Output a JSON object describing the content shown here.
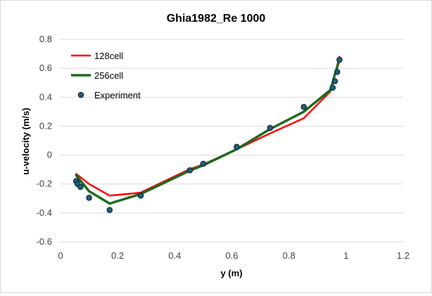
{
  "chart_data": {
    "type": "line",
    "title": "Ghia1982_Re 1000",
    "xlabel": "y (m)",
    "ylabel": "u-velocity (m/s)",
    "xlim": [
      0,
      1.2
    ],
    "ylim": [
      -0.6,
      0.8
    ],
    "x_ticks": [
      "0",
      "0.2",
      "0.4",
      "0.6",
      "0.8",
      "1",
      "1.2"
    ],
    "y_ticks": [
      "-0.6",
      "-0.4",
      "-0.2",
      "0",
      "0.2",
      "0.4",
      "0.6",
      "0.8"
    ],
    "grid": "horizontal",
    "legend": "top-left",
    "series": [
      {
        "name": "128cell",
        "kind": "line",
        "color": "#ff0000",
        "x": [
          0.055,
          0.1,
          0.172,
          0.28,
          0.45,
          0.5,
          0.617,
          0.734,
          0.852,
          0.945,
          0.953,
          0.961,
          0.969,
          0.977
        ],
        "y": [
          -0.13,
          -0.2,
          -0.28,
          -0.26,
          -0.1,
          -0.065,
          0.04,
          0.15,
          0.255,
          0.44,
          0.5,
          0.56,
          0.62,
          0.68
        ]
      },
      {
        "name": "256cell",
        "kind": "line",
        "color": "#1e6b1e",
        "x": [
          0.055,
          0.1,
          0.172,
          0.28,
          0.45,
          0.5,
          0.617,
          0.734,
          0.852,
          0.945,
          0.953,
          0.961,
          0.969,
          0.977
        ],
        "y": [
          -0.14,
          -0.25,
          -0.335,
          -0.27,
          -0.11,
          -0.07,
          0.04,
          0.18,
          0.3,
          0.45,
          0.5,
          0.56,
          0.61,
          0.66
        ]
      },
      {
        "name": "Experiment",
        "kind": "scatter",
        "color": "#1f5f7a",
        "x": [
          0.055,
          0.06,
          0.07,
          0.1,
          0.172,
          0.281,
          0.453,
          0.5,
          0.617,
          0.734,
          0.852,
          0.953,
          0.961,
          0.969,
          0.977
        ],
        "y": [
          -0.18,
          -0.2,
          -0.22,
          -0.295,
          -0.38,
          -0.28,
          -0.105,
          -0.06,
          0.057,
          0.188,
          0.333,
          0.466,
          0.511,
          0.575,
          0.659
        ]
      }
    ]
  }
}
